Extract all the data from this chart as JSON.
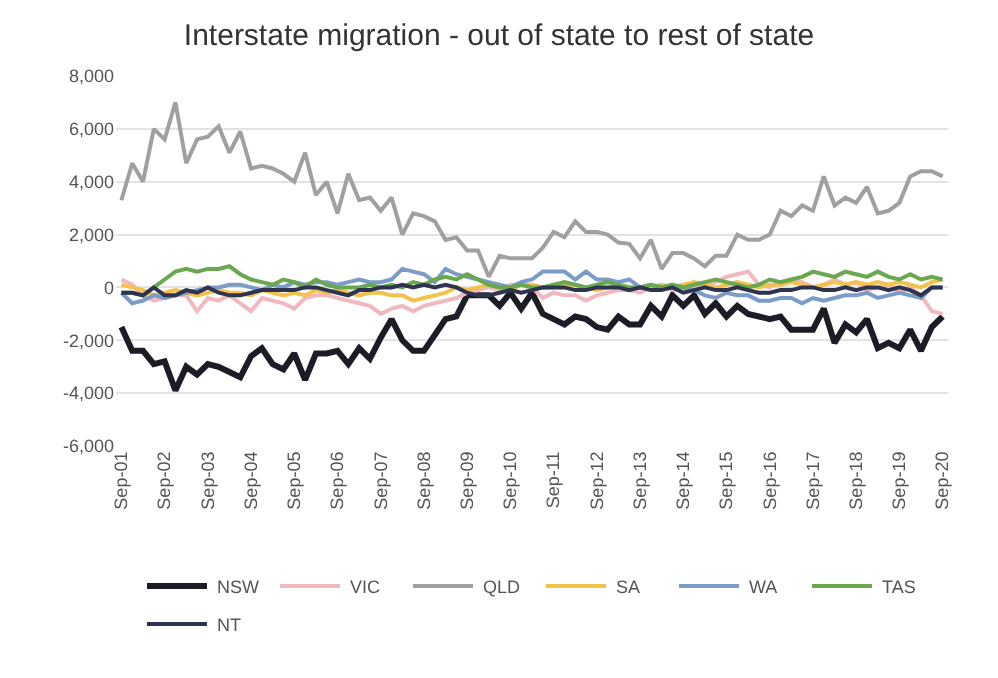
{
  "chart_data": {
    "type": "line",
    "title": "Interstate migration - out of state to rest of state",
    "categories": [
      "Sep-01",
      null,
      null,
      null,
      "Sep-02",
      null,
      null,
      null,
      "Sep-03",
      null,
      null,
      null,
      "Sep-04",
      null,
      null,
      null,
      "Sep-05",
      null,
      null,
      null,
      "Sep-06",
      null,
      null,
      null,
      "Sep-07",
      null,
      null,
      null,
      "Sep-08",
      null,
      null,
      null,
      "Sep-09",
      null,
      null,
      null,
      "Sep-10",
      null,
      null,
      null,
      "Sep-11",
      null,
      null,
      null,
      "Sep-12",
      null,
      null,
      null,
      "Sep-13",
      null,
      null,
      null,
      "Sep-14",
      null,
      null,
      null,
      "Sep-15",
      null,
      null,
      null,
      "Sep-16",
      null,
      null,
      null,
      "Sep-17",
      null,
      null,
      null,
      "Sep-18",
      null,
      null,
      null,
      "Sep-19",
      null,
      null,
      null,
      "Sep-20"
    ],
    "series": [
      {
        "name": "NSW",
        "color": "#1c1c26",
        "values": [
          -1500,
          -2400,
          -2400,
          -2900,
          -2800,
          -3900,
          -3000,
          -3300,
          -2900,
          -3000,
          -3200,
          -3400,
          -2600,
          -2300,
          -2900,
          -3100,
          -2500,
          -3500,
          -2500,
          -2500,
          -2400,
          -2900,
          -2300,
          -2700,
          -1900,
          -1200,
          -2000,
          -2400,
          -2400,
          -1800,
          -1200,
          -1100,
          -300,
          -300,
          -300,
          -700,
          -200,
          -800,
          -200,
          -1000,
          -1200,
          -1400,
          -1100,
          -1200,
          -1500,
          -1600,
          -1100,
          -1400,
          -1400,
          -700,
          -1100,
          -300,
          -700,
          -300,
          -1000,
          -600,
          -1100,
          -700,
          -1000,
          -1100,
          -1200,
          -1100,
          -1600,
          -1600,
          -1600,
          -800,
          -2100,
          -1400,
          -1700,
          -1200,
          -2300,
          -2100,
          -2300,
          -1600,
          -2400,
          -1500,
          -1100
        ]
      },
      {
        "name": "VIC",
        "color": "#f2b8c0",
        "values": [
          300,
          100,
          -300,
          -500,
          -400,
          -300,
          -300,
          -900,
          -400,
          -500,
          -300,
          -600,
          -900,
          -400,
          -500,
          -600,
          -800,
          -400,
          -300,
          -300,
          -400,
          -500,
          -600,
          -700,
          -1000,
          -800,
          -700,
          -900,
          -700,
          -600,
          -500,
          -400,
          -200,
          -100,
          0,
          -100,
          100,
          100,
          0,
          -400,
          -200,
          -300,
          -300,
          -500,
          -300,
          -200,
          -100,
          -100,
          -200,
          0,
          100,
          -100,
          -100,
          0,
          100,
          200,
          400,
          500,
          600,
          100,
          0,
          200,
          300,
          200,
          0,
          100,
          300,
          100,
          200,
          -100,
          0,
          100,
          -200,
          0,
          -300,
          -900,
          -1000
        ]
      },
      {
        "name": "QLD",
        "color": "#a0a0a0",
        "values": [
          3300,
          4700,
          4000,
          6000,
          5600,
          7000,
          4700,
          5600,
          5700,
          6100,
          5100,
          5900,
          4500,
          4600,
          4500,
          4300,
          4000,
          5100,
          3500,
          4000,
          2800,
          4300,
          3300,
          3400,
          2900,
          3400,
          2000,
          2800,
          2700,
          2500,
          1800,
          1900,
          1400,
          1400,
          400,
          1200,
          1100,
          1100,
          1100,
          1500,
          2100,
          1900,
          2500,
          2100,
          2100,
          2000,
          1700,
          1650,
          1100,
          1800,
          700,
          1300,
          1300,
          1100,
          800,
          1200,
          1200,
          2000,
          1800,
          1800,
          2000,
          2900,
          2700,
          3100,
          2900,
          4200,
          3100,
          3400,
          3200,
          3800,
          2800,
          2900,
          3200,
          4200,
          4400,
          4400,
          4200
        ]
      },
      {
        "name": "SA",
        "color": "#f2c14e",
        "values": [
          100,
          0,
          -100,
          -300,
          -200,
          -100,
          -200,
          -300,
          -200,
          -100,
          -200,
          -200,
          -300,
          -100,
          -200,
          -300,
          -200,
          -300,
          -100,
          -200,
          -100,
          -200,
          -300,
          -200,
          -200,
          -300,
          -300,
          -500,
          -400,
          -300,
          -200,
          0,
          -100,
          0,
          100,
          0,
          -100,
          100,
          100,
          0,
          0,
          100,
          100,
          0,
          -100,
          0,
          100,
          0,
          0,
          0,
          100,
          0,
          100,
          200,
          100,
          0,
          100,
          200,
          100,
          0,
          100,
          100,
          200,
          100,
          0,
          100,
          200,
          100,
          200,
          100,
          200,
          100,
          200,
          100,
          0,
          200,
          300
        ]
      },
      {
        "name": "WA",
        "color": "#7b9cc9",
        "values": [
          -200,
          -600,
          -500,
          -300,
          -400,
          -300,
          -200,
          -100,
          0,
          0,
          100,
          100,
          0,
          -100,
          100,
          0,
          200,
          100,
          200,
          200,
          100,
          200,
          300,
          200,
          200,
          300,
          700,
          600,
          500,
          200,
          700,
          500,
          400,
          300,
          200,
          100,
          0,
          200,
          300,
          600,
          600,
          600,
          300,
          600,
          300,
          300,
          200,
          300,
          0,
          100,
          0,
          100,
          0,
          -100,
          -300,
          -400,
          -200,
          -300,
          -300,
          -500,
          -500,
          -400,
          -400,
          -600,
          -400,
          -500,
          -400,
          -300,
          -300,
          -200,
          -400,
          -300,
          -200,
          -300,
          -400,
          0,
          0
        ]
      },
      {
        "name": "TAS",
        "color": "#6aa84f",
        "values": [
          -200,
          -200,
          -300,
          0,
          300,
          600,
          700,
          600,
          700,
          700,
          800,
          500,
          300,
          200,
          100,
          300,
          200,
          0,
          300,
          100,
          0,
          0,
          0,
          100,
          0,
          100,
          0,
          200,
          100,
          300,
          400,
          300,
          500,
          300,
          100,
          0,
          0,
          100,
          0,
          0,
          100,
          200,
          100,
          0,
          100,
          200,
          100,
          0,
          0,
          100,
          0,
          100,
          0,
          100,
          200,
          300,
          200,
          100,
          0,
          100,
          300,
          200,
          300,
          400,
          600,
          500,
          400,
          600,
          500,
          400,
          600,
          400,
          300,
          500,
          300,
          400,
          300
        ]
      },
      {
        "name": "NT",
        "color": "#2e3450",
        "values": [
          -200,
          -200,
          -300,
          0,
          -300,
          -300,
          -100,
          -200,
          0,
          -200,
          -300,
          -300,
          -200,
          -100,
          -100,
          -100,
          -100,
          0,
          0,
          -100,
          -200,
          -300,
          -100,
          -100,
          0,
          0,
          100,
          0,
          100,
          0,
          100,
          0,
          -200,
          -300,
          -300,
          -200,
          -100,
          -200,
          -100,
          0,
          0,
          0,
          -100,
          -100,
          0,
          0,
          0,
          -100,
          0,
          -100,
          -100,
          0,
          -200,
          -100,
          0,
          -100,
          -100,
          0,
          -100,
          -200,
          -200,
          -100,
          -100,
          0,
          0,
          -100,
          -100,
          0,
          -100,
          0,
          0,
          -100,
          0,
          -100,
          -300,
          0,
          0
        ]
      }
    ],
    "ylim": [
      -6000,
      8000
    ],
    "yticks": [
      {
        "value": -6000,
        "label": "-6,000"
      },
      {
        "value": -4000,
        "label": "-4,000"
      },
      {
        "value": -2000,
        "label": "-2,000"
      },
      0,
      {
        "value": 2000,
        "label": "2,000"
      },
      {
        "value": 4000,
        "label": "4,000"
      },
      {
        "value": 6000,
        "label": "6,000"
      },
      {
        "value": 8000,
        "label": "8,000"
      }
    ],
    "grid": "y",
    "legend": "bottom",
    "marker": "none",
    "line_style": "solid"
  }
}
